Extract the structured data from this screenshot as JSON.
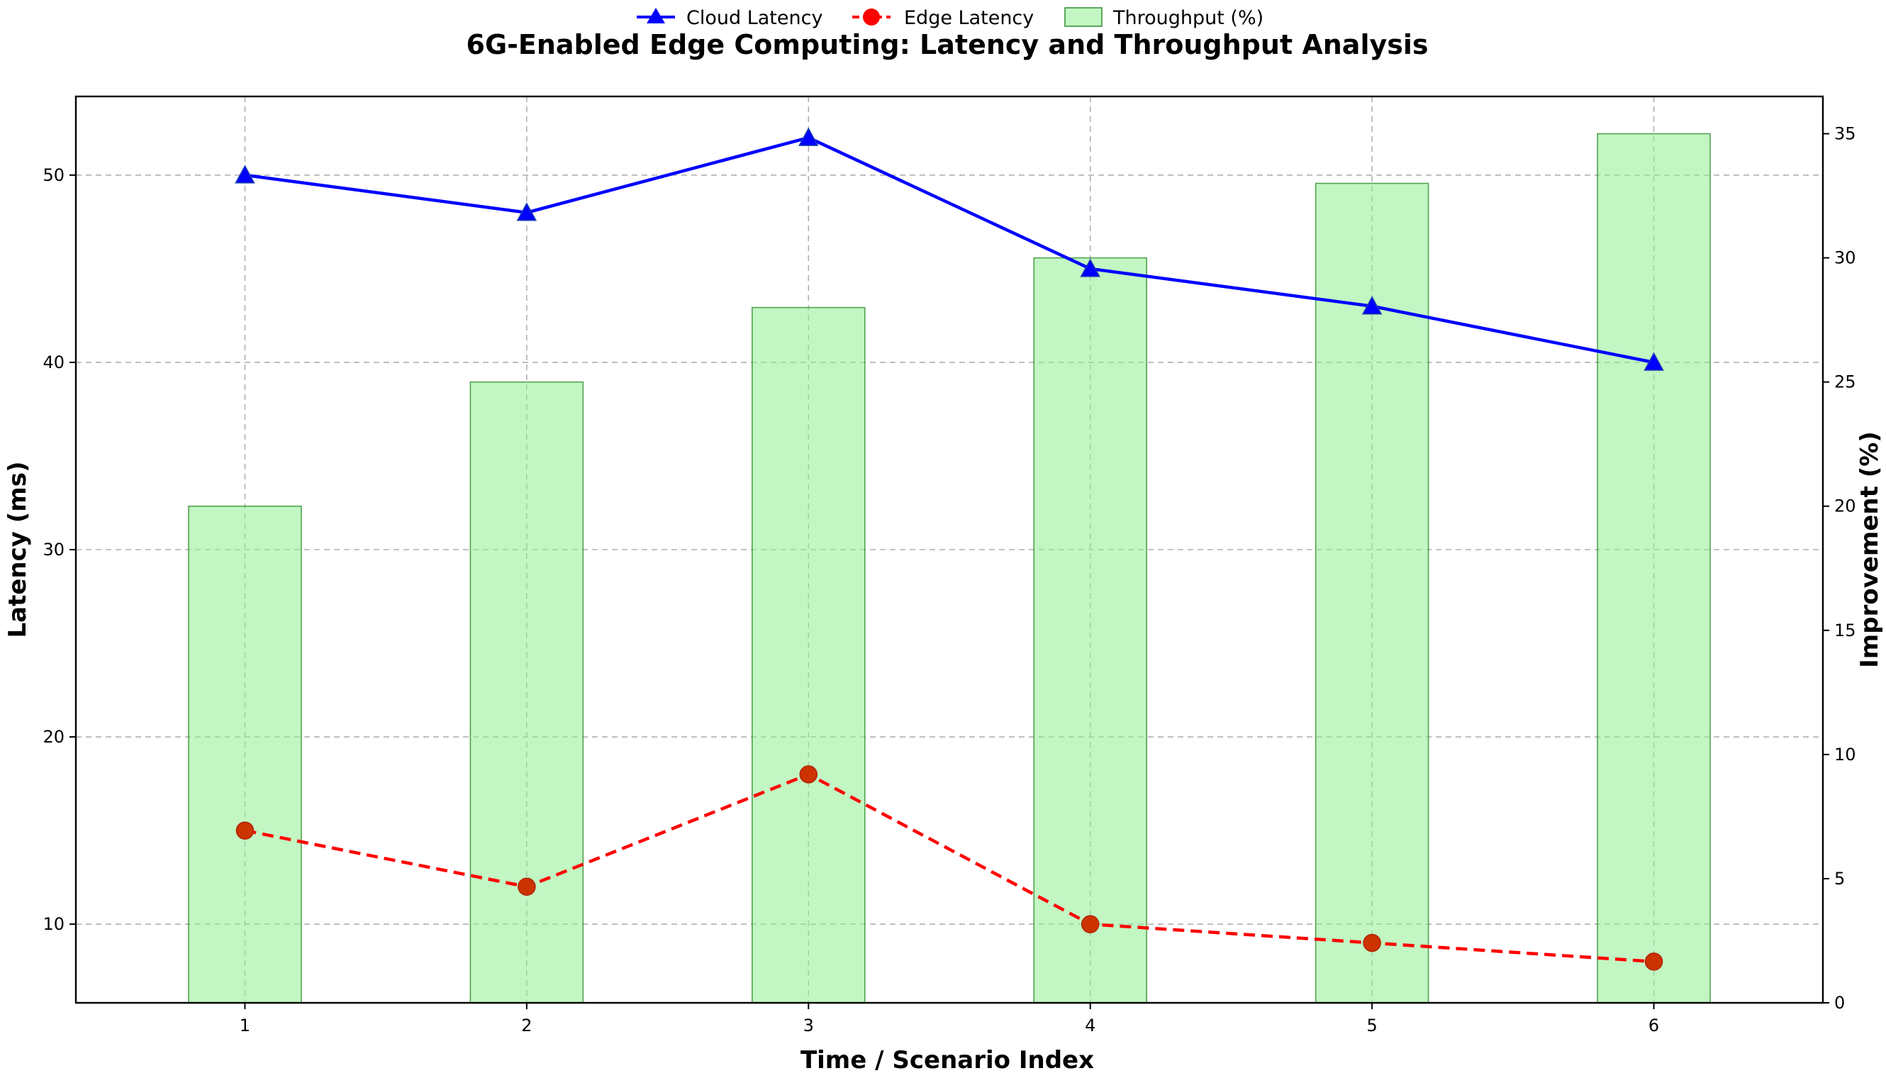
{
  "chart_data": {
    "type": "line",
    "title": "6G-Enabled Edge Computing: Latency and Throughput Analysis",
    "xlabel": "Time / Scenario Index",
    "ylabel": "Latency (ms)",
    "y2label": "Improvement (%)",
    "x": [
      1,
      2,
      3,
      4,
      5,
      6
    ],
    "xlim": [
      0.4,
      6.6
    ],
    "ylim": [
      5.8,
      54.2
    ],
    "y2lim": [
      0,
      36.5
    ],
    "yticks": [
      10,
      20,
      30,
      40,
      50
    ],
    "y2ticks": [
      0,
      5,
      10,
      15,
      20,
      25,
      30,
      35
    ],
    "grid": true,
    "legend_position": "top-center",
    "series": [
      {
        "name": "Cloud Latency",
        "kind": "line",
        "axis": "left",
        "color": "#0000ff",
        "marker": "triangle",
        "linestyle": "solid",
        "values": [
          50,
          48,
          52,
          45,
          43,
          40
        ]
      },
      {
        "name": "Edge Latency",
        "kind": "line",
        "axis": "left",
        "color": "#ff0000",
        "marker": "circle",
        "marker_color": "#cc3300",
        "linestyle": "dashed",
        "values": [
          15,
          12,
          18,
          10,
          9,
          8
        ]
      },
      {
        "name": "Throughput (%)",
        "kind": "bar",
        "axis": "right",
        "color": "#90ee90",
        "edge_color": "#2e8b2e",
        "values": [
          20,
          25,
          28,
          30,
          33,
          35
        ]
      }
    ]
  }
}
